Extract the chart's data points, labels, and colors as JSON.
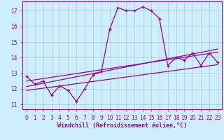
{
  "xlabel": "Windchill (Refroidissement éolien,°C)",
  "bg_color": "#cceeff",
  "grid_color": "#aaccbb",
  "line_color": "#990099",
  "xlim": [
    -0.5,
    23.5
  ],
  "ylim": [
    10.7,
    17.6
  ],
  "xticks": [
    0,
    1,
    2,
    3,
    4,
    5,
    6,
    7,
    8,
    9,
    10,
    11,
    12,
    13,
    14,
    15,
    16,
    17,
    18,
    19,
    20,
    21,
    22,
    23
  ],
  "yticks": [
    11,
    12,
    13,
    14,
    15,
    16,
    17
  ],
  "main_line_x": [
    0,
    1,
    2,
    3,
    4,
    5,
    6,
    7,
    8,
    9,
    10,
    11,
    12,
    13,
    14,
    15,
    16,
    17,
    18,
    19,
    20,
    21,
    22,
    23
  ],
  "main_line_y": [
    12.8,
    12.3,
    12.5,
    11.6,
    12.2,
    11.9,
    11.2,
    12.0,
    12.9,
    13.1,
    15.8,
    17.2,
    17.0,
    17.0,
    17.25,
    17.0,
    16.5,
    13.5,
    14.0,
    13.85,
    14.3,
    13.5,
    14.3,
    13.7
  ],
  "trend1_x": [
    0,
    23
  ],
  "trend1_y": [
    12.5,
    14.35
  ],
  "trend2_x": [
    0,
    23
  ],
  "trend2_y": [
    12.15,
    14.55
  ],
  "trend3_x": [
    0,
    23
  ],
  "trend3_y": [
    11.9,
    13.55
  ]
}
